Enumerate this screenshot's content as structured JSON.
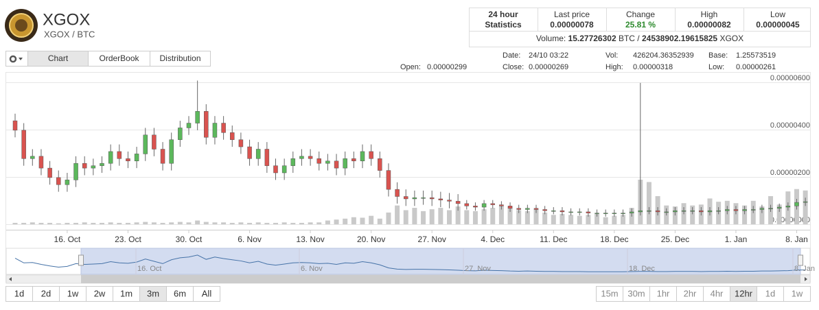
{
  "header": {
    "title": "XGOX",
    "pair": "XGOX / BTC"
  },
  "stats": {
    "heading": [
      "24 hour",
      "Statistics"
    ],
    "columns": [
      {
        "label": "Last price",
        "value": "0.00000078"
      },
      {
        "label": "Change",
        "value": "25.81 %"
      },
      {
        "label": "High",
        "value": "0.00000082"
      },
      {
        "label": "Low",
        "value": "0.00000045"
      }
    ],
    "volume": {
      "label": "Volume:",
      "btc": "15.27726302",
      "btc_unit": "BTC /",
      "xgox": "24538902.19615825",
      "xgox_unit": "XGOX"
    }
  },
  "tabs": [
    "Chart",
    "OrderBook",
    "Distribution"
  ],
  "info": [
    {
      "label": "Open:",
      "value": "0.00000299"
    },
    {
      "label": "Date:",
      "value": "24/10 03:22"
    },
    {
      "label": "Close:",
      "value": "0.00000269"
    },
    {
      "label": "Vol:",
      "value": "426204.36352939"
    },
    {
      "label": "High:",
      "value": "0.00000318"
    },
    {
      "label": "Base:",
      "value": "1.25573519"
    },
    {
      "label": "Low:",
      "value": "0.00000261"
    }
  ],
  "ranges": [
    "1d",
    "2d",
    "1w",
    "2w",
    "1m",
    "3m",
    "6m",
    "All"
  ],
  "intervals": [
    "15m",
    "30m",
    "1hr",
    "2hr",
    "4hr",
    "12hr",
    "1d",
    "1w"
  ],
  "navigator_labels": [
    "16. Oct",
    "6. Nov",
    "27. Nov",
    "18. Dec",
    "8. Jan"
  ],
  "chart_data": {
    "type": "candlestick",
    "categories": [
      null,
      null,
      null,
      null,
      null,
      null,
      "16. Oct",
      null,
      null,
      null,
      null,
      null,
      null,
      "23. Oct",
      null,
      null,
      null,
      null,
      null,
      null,
      "30. Oct",
      null,
      null,
      null,
      null,
      null,
      null,
      "6. Nov",
      null,
      null,
      null,
      null,
      null,
      null,
      "13. Nov",
      null,
      null,
      null,
      null,
      null,
      null,
      "20. Nov",
      null,
      null,
      null,
      null,
      null,
      null,
      "27. Nov",
      null,
      null,
      null,
      null,
      null,
      null,
      "4. Dec",
      null,
      null,
      null,
      null,
      null,
      null,
      "11. Dec",
      null,
      null,
      null,
      null,
      null,
      null,
      "18. Dec",
      null,
      null,
      null,
      null,
      null,
      null,
      "25. Dec",
      null,
      null,
      null,
      null,
      null,
      null,
      "1. Jan",
      null,
      null,
      null,
      null,
      null,
      null,
      "8. Jan",
      null
    ],
    "open": [
      4.2e-06,
      3.8e-06,
      2.6e-06,
      2.7e-06,
      2.2e-06,
      1.8e-06,
      1.5e-06,
      1.7e-06,
      2.4e-06,
      2.2e-06,
      2.3e-06,
      2.4e-06,
      2.9e-06,
      2.6e-06,
      2.5e-06,
      2.8e-06,
      3.6e-06,
      3e-06,
      2.4e-06,
      3.4e-06,
      3.9e-06,
      4.1e-06,
      4.6e-06,
      3.5e-06,
      4.1e-06,
      3.7e-06,
      3.4e-06,
      3.1e-06,
      2.6e-06,
      3e-06,
      2.3e-06,
      2e-06,
      2.3e-06,
      2.6e-06,
      2.7e-06,
      2.6e-06,
      2.4e-06,
      2.5e-06,
      2.2e-06,
      2.6e-06,
      2.5e-06,
      2.9e-06,
      2.6e-06,
      2.1e-06,
      1.3e-06,
      1e-06,
      9e-07,
      9.5e-07,
      9.5e-07,
      9e-07,
      8.5e-07,
      8e-07,
      7e-07,
      6e-07,
      5.5e-07,
      7e-07,
      6.5e-07,
      6e-07,
      5e-07,
      4.5e-07,
      5e-07,
      4.5e-07,
      4e-07,
      4e-07,
      3.5e-07,
      3.5e-07,
      3.5e-07,
      3e-07,
      3e-07,
      3e-07,
      3e-07,
      3e-07,
      3.5e-07,
      4e-07,
      4e-07,
      3.5e-07,
      3.5e-07,
      4e-07,
      4e-07,
      4e-07,
      3.5e-07,
      4e-07,
      4e-07,
      4.5e-07,
      4e-07,
      4.5e-07,
      4.5e-07,
      5e-07,
      5e-07,
      5.5e-07,
      6e-07,
      7.5e-07
    ],
    "high": [
      4.5e-06,
      4.1e-06,
      3e-06,
      3e-06,
      2.5e-06,
      2.1e-06,
      2e-06,
      2.7e-06,
      2.7e-06,
      2.6e-06,
      2.7e-06,
      3.2e-06,
      3.2e-06,
      2.9e-06,
      3.1e-06,
      3.9e-06,
      3.9e-06,
      3.3e-06,
      3.7e-06,
      4.2e-06,
      4.4e-06,
      5.9e-06,
      4.9e-06,
      4.4e-06,
      4.4e-06,
      4e-06,
      3.7e-06,
      3.4e-06,
      3.3e-06,
      3.3e-06,
      2.6e-06,
      2.6e-06,
      2.9e-06,
      3e-06,
      3e-06,
      2.9e-06,
      2.8e-06,
      2.8e-06,
      2.9e-06,
      2.9e-06,
      3.2e-06,
      3.2e-06,
      2.9e-06,
      2.4e-06,
      1.6e-06,
      1.3e-06,
      1.25e-06,
      1.25e-06,
      1.25e-06,
      1.2e-06,
      1.15e-06,
      1.1e-06,
      8.5e-07,
      7.5e-07,
      8.5e-07,
      8.5e-07,
      8e-07,
      7.5e-07,
      6.5e-07,
      6.5e-07,
      6.5e-07,
      6e-07,
      5.5e-07,
      5.5e-07,
      5e-07,
      5e-07,
      5e-07,
      4.5e-07,
      4.5e-07,
      4.5e-07,
      4.5e-07,
      5e-07,
      5.8e-06,
      5.5e-07,
      5.5e-07,
      5e-07,
      5.5e-07,
      5.5e-07,
      5.5e-07,
      5.5e-07,
      5.5e-07,
      5.5e-07,
      6e-07,
      6e-07,
      6e-07,
      6e-07,
      6.5e-07,
      6.5e-07,
      7e-07,
      7.5e-07,
      9e-07,
      9.5e-07
    ],
    "low": [
      3.5e-06,
      2.3e-06,
      2.3e-06,
      1.9e-06,
      1.5e-06,
      1.2e-06,
      1.2e-06,
      1.4e-06,
      1.9e-06,
      1.9e-06,
      2e-06,
      2.1e-06,
      2.3e-06,
      2.2e-06,
      2.2e-06,
      2.5e-06,
      2.7e-06,
      2.1e-06,
      2.1e-06,
      3.1e-06,
      3.6e-06,
      3.8e-06,
      3.2e-06,
      3.2e-06,
      3.4e-06,
      3.1e-06,
      2.8e-06,
      2.3e-06,
      2.3e-06,
      2e-06,
      1.7e-06,
      1.7e-06,
      2e-06,
      2.3e-06,
      2.3e-06,
      2.1e-06,
      2.1e-06,
      1.9e-06,
      1.9e-06,
      2.2e-06,
      2.2e-06,
      2.3e-06,
      1.8e-06,
      1e-06,
      7e-07,
      6e-07,
      6e-07,
      6.5e-07,
      6e-07,
      5.5e-07,
      5e-07,
      4e-07,
      4.5e-07,
      4e-07,
      4e-07,
      5e-07,
      4.5e-07,
      3.5e-07,
      3e-07,
      3e-07,
      3e-07,
      2.5e-07,
      2.5e-07,
      2e-07,
      2e-07,
      2e-07,
      1.5e-07,
      1.5e-07,
      1.5e-07,
      1.5e-07,
      1.5e-07,
      1.5e-07,
      2e-07,
      2.5e-07,
      2e-07,
      2e-07,
      2e-07,
      2.5e-07,
      2.5e-07,
      2e-07,
      2e-07,
      2.5e-07,
      2.5e-07,
      2.5e-07,
      2.5e-07,
      3e-07,
      3e-07,
      3.5e-07,
      3.5e-07,
      4e-07,
      4.5e-07,
      6e-07
    ],
    "close": [
      3.8e-06,
      2.6e-06,
      2.7e-06,
      2.2e-06,
      1.8e-06,
      1.5e-06,
      1.7e-06,
      2.4e-06,
      2.2e-06,
      2.3e-06,
      2.4e-06,
      2.9e-06,
      2.6e-06,
      2.5e-06,
      2.8e-06,
      3.6e-06,
      3e-06,
      2.4e-06,
      3.4e-06,
      3.9e-06,
      4.1e-06,
      4.6e-06,
      3.5e-06,
      4.1e-06,
      3.7e-06,
      3.4e-06,
      3.1e-06,
      2.6e-06,
      3e-06,
      2.3e-06,
      2e-06,
      2.3e-06,
      2.6e-06,
      2.7e-06,
      2.6e-06,
      2.4e-06,
      2.5e-06,
      2.2e-06,
      2.6e-06,
      2.5e-06,
      2.9e-06,
      2.6e-06,
      2.1e-06,
      1.3e-06,
      1e-06,
      9e-07,
      9.5e-07,
      9.5e-07,
      9e-07,
      8.5e-07,
      8e-07,
      7e-07,
      6e-07,
      5.5e-07,
      7e-07,
      6.5e-07,
      6e-07,
      5e-07,
      4.5e-07,
      5e-07,
      4.5e-07,
      4e-07,
      4e-07,
      3.5e-07,
      3.5e-07,
      3.5e-07,
      3e-07,
      3e-07,
      3e-07,
      3e-07,
      3e-07,
      3.5e-07,
      4e-07,
      4e-07,
      3.5e-07,
      3.5e-07,
      4e-07,
      4e-07,
      4e-07,
      3.5e-07,
      4e-07,
      4e-07,
      4.5e-07,
      4e-07,
      4.5e-07,
      4.5e-07,
      5e-07,
      5e-07,
      5.5e-07,
      6e-07,
      7.5e-07,
      7.8e-07
    ],
    "volume": [
      3,
      3,
      4,
      3,
      3,
      2,
      3,
      3,
      4,
      3,
      3,
      4,
      3,
      3,
      4,
      5,
      4,
      3,
      4,
      5,
      4,
      8,
      5,
      4,
      4,
      3,
      4,
      3,
      4,
      3,
      3,
      4,
      3,
      3,
      4,
      4,
      8,
      10,
      12,
      15,
      14,
      18,
      12,
      25,
      40,
      30,
      35,
      28,
      32,
      35,
      30,
      38,
      30,
      28,
      32,
      35,
      40,
      38,
      30,
      28,
      32,
      25,
      20,
      22,
      20,
      18,
      20,
      22,
      15,
      18,
      20,
      35,
      95,
      90,
      60,
      40,
      38,
      45,
      40,
      42,
      55,
      48,
      50,
      45,
      40,
      50,
      38,
      60,
      42,
      70,
      75,
      72
    ],
    "up_color": "#5cb85c",
    "down_color": "#d9534f",
    "volume_color": "#c9c9c9",
    "ylim": [
      0,
      6e-06
    ],
    "yticks": [
      {
        "value": 0,
        "label": "0.00000000"
      },
      {
        "value": 2e-06,
        "label": "0.00000200"
      },
      {
        "value": 4e-06,
        "label": "0.00000400"
      },
      {
        "value": 6e-06,
        "label": "0.00000600"
      }
    ],
    "grid": true
  }
}
